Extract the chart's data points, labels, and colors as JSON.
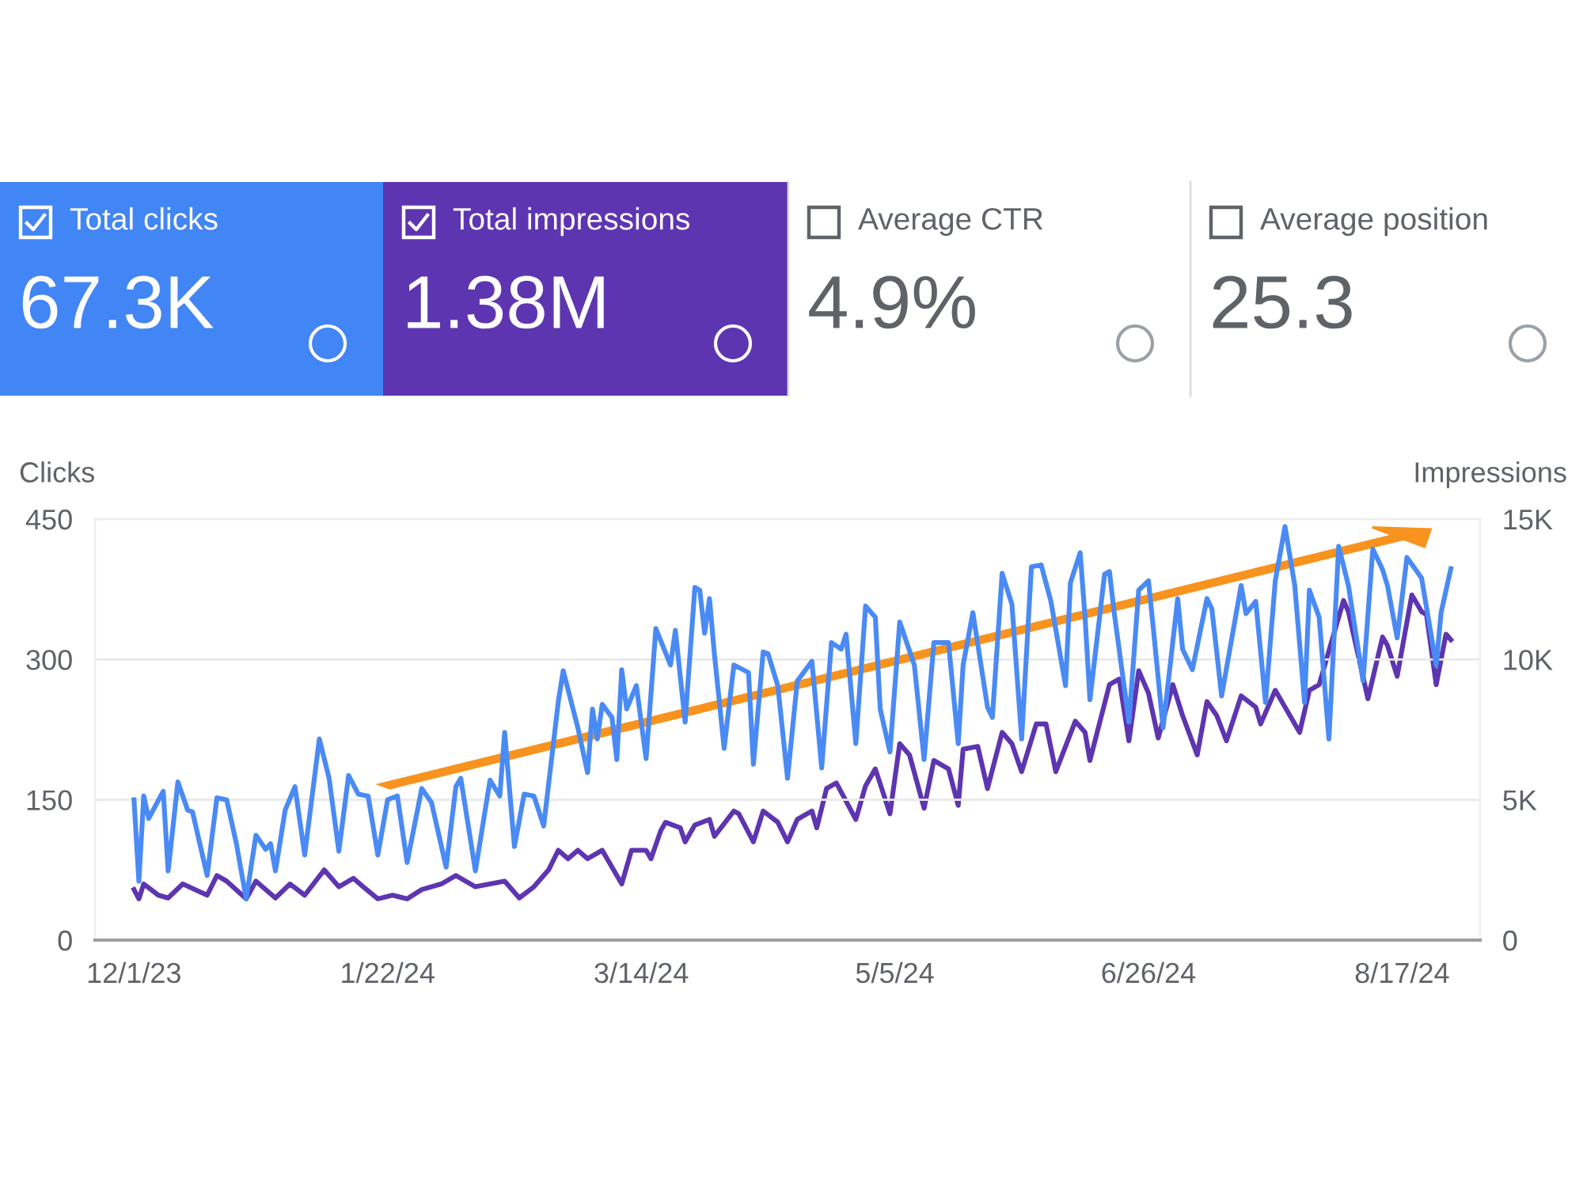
{
  "chart_data": {
    "type": "line",
    "annotations": [
      "Total clicks",
      "67.3K",
      "Total impressions",
      "1.38M",
      "Average CTR",
      "4.9%",
      "Average position",
      "25.3"
    ],
    "ylabel": "Clicks",
    "y2label": "Impressions",
    "xlim": [
      "2023-11-23",
      "2024-09-02"
    ],
    "xticks": [
      {
        "value": "2023-12-01",
        "label": "12/1/23"
      },
      {
        "value": "2024-01-22",
        "label": "1/22/24"
      },
      {
        "value": "2024-03-14",
        "label": "3/14/24"
      },
      {
        "value": "2024-05-05",
        "label": "5/5/24"
      },
      {
        "value": "2024-06-26",
        "label": "6/26/24"
      },
      {
        "value": "2024-08-17",
        "label": "8/17/24"
      }
    ],
    "ylim": [
      0,
      450
    ],
    "yticks": [
      0,
      150,
      300,
      450
    ],
    "y2lim": [
      0,
      15000
    ],
    "y2ticks": [
      0,
      {
        "value": 5000,
        "label": "5K"
      },
      {
        "value": 10000,
        "label": "10K"
      },
      {
        "value": 15000,
        "label": "15K"
      }
    ],
    "grid": "y",
    "marker": "none",
    "line_style": "solid",
    "series": [
      {
        "color": "#4a8af4",
        "x": [
          "2023-12-01",
          "2023-12-02",
          "2023-12-03",
          "2023-12-04",
          "2023-12-07",
          "2023-12-08",
          "2023-12-10",
          "2023-12-12",
          "2023-12-13",
          "2023-12-16",
          "2023-12-18",
          "2023-12-20",
          "2023-12-22",
          "2023-12-24",
          "2023-12-26",
          "2023-12-28",
          "2023-12-29",
          "2023-12-30",
          "2024-01-01",
          "2024-01-03",
          "2024-01-05",
          "2024-01-08",
          "2024-01-10",
          "2024-01-12",
          "2024-01-14",
          "2024-01-16",
          "2024-01-18",
          "2024-01-20",
          "2024-01-22",
          "2024-01-24",
          "2024-01-26",
          "2024-01-29",
          "2024-01-31",
          "2024-02-03",
          "2024-02-05",
          "2024-02-06",
          "2024-02-09",
          "2024-02-12",
          "2024-02-14",
          "2024-02-15",
          "2024-02-17",
          "2024-02-19",
          "2024-02-21",
          "2024-02-23",
          "2024-02-26",
          "2024-02-27",
          "2024-03-01",
          "2024-03-03",
          "2024-03-04",
          "2024-03-05",
          "2024-03-06",
          "2024-03-08",
          "2024-03-09",
          "2024-03-10",
          "2024-03-11",
          "2024-03-13",
          "2024-03-15",
          "2024-03-17",
          "2024-03-20",
          "2024-03-21",
          "2024-03-23",
          "2024-03-25",
          "2024-03-26",
          "2024-03-27",
          "2024-03-28",
          "2024-03-29",
          "2024-03-31",
          "2024-04-02",
          "2024-04-05",
          "2024-04-06",
          "2024-04-08",
          "2024-04-09",
          "2024-04-11",
          "2024-04-13",
          "2024-04-15",
          "2024-04-18",
          "2024-04-20",
          "2024-04-22",
          "2024-04-24",
          "2024-04-25",
          "2024-04-27",
          "2024-04-29",
          "2024-05-01",
          "2024-05-02",
          "2024-05-04",
          "2024-05-06",
          "2024-05-09",
          "2024-05-11",
          "2024-05-13",
          "2024-05-16",
          "2024-05-18",
          "2024-05-19",
          "2024-05-21",
          "2024-05-24",
          "2024-05-25",
          "2024-05-27",
          "2024-05-29",
          "2024-05-31",
          "2024-06-02",
          "2024-06-04",
          "2024-06-06",
          "2024-06-09",
          "2024-06-10",
          "2024-06-12",
          "2024-06-13",
          "2024-06-14",
          "2024-06-17",
          "2024-06-18",
          "2024-06-19",
          "2024-06-22",
          "2024-06-24",
          "2024-06-26",
          "2024-06-27",
          "2024-06-29",
          "2024-07-02",
          "2024-07-03",
          "2024-07-05",
          "2024-07-08",
          "2024-07-09",
          "2024-07-11",
          "2024-07-15",
          "2024-07-16",
          "2024-07-18",
          "2024-07-20",
          "2024-07-22",
          "2024-07-24",
          "2024-07-26",
          "2024-07-28",
          "2024-07-29",
          "2024-07-31",
          "2024-08-02",
          "2024-08-04",
          "2024-08-06",
          "2024-08-09",
          "2024-08-11",
          "2024-08-13",
          "2024-08-14",
          "2024-08-16",
          "2024-08-18",
          "2024-08-21",
          "2024-08-24",
          "2024-08-25",
          "2024-08-27"
        ],
        "values": [
          150,
          63,
          154,
          130,
          159,
          74,
          169,
          139,
          137,
          69,
          152,
          150,
          103,
          44,
          112,
          97,
          103,
          74,
          139,
          164,
          91,
          215,
          173,
          95,
          176,
          156,
          154,
          91,
          150,
          154,
          83,
          162,
          147,
          78,
          164,
          173,
          74,
          171,
          154,
          222,
          100,
          156,
          154,
          122,
          255,
          288,
          227,
          179,
          247,
          215,
          252,
          238,
          193,
          289,
          247,
          272,
          194,
          333,
          294,
          331,
          233,
          377,
          374,
          328,
          365,
          306,
          205,
          294,
          286,
          188,
          308,
          306,
          272,
          173,
          277,
          298,
          184,
          318,
          311,
          327,
          210,
          357,
          345,
          247,
          201,
          340,
          294,
          193,
          318,
          318,
          210,
          294,
          350,
          249,
          238,
          392,
          359,
          215,
          399,
          401,
          362,
          272,
          382,
          414,
          345,
          257,
          391,
          394,
          349,
          233,
          374,
          384,
          333,
          227,
          365,
          311,
          289,
          365,
          354,
          261,
          379,
          349,
          362,
          254,
          384,
          442,
          379,
          254,
          374,
          345,
          215,
          421,
          379,
          277,
          418,
          396,
          379,
          323,
          409,
          387,
          294,
          350,
          397
        ]
      },
      {
        "color": "#5e35b1",
        "axis": "y2",
        "x": [
          "2023-12-01",
          "2023-12-02",
          "2023-12-03",
          "2023-12-06",
          "2023-12-08",
          "2023-12-11",
          "2023-12-16",
          "2023-12-18",
          "2023-12-20",
          "2023-12-24",
          "2023-12-26",
          "2023-12-30",
          "2024-01-02",
          "2024-01-05",
          "2024-01-09",
          "2024-01-12",
          "2024-01-15",
          "2024-01-17",
          "2024-01-20",
          "2024-01-23",
          "2024-01-26",
          "2024-01-29",
          "2024-02-02",
          "2024-02-05",
          "2024-02-09",
          "2024-02-15",
          "2024-02-18",
          "2024-02-21",
          "2024-02-24",
          "2024-02-26",
          "2024-02-28",
          "2024-03-01",
          "2024-03-03",
          "2024-03-06",
          "2024-03-10",
          "2024-03-12",
          "2024-03-15",
          "2024-03-16",
          "2024-03-18",
          "2024-03-19",
          "2024-03-22",
          "2024-03-23",
          "2024-03-25",
          "2024-03-28",
          "2024-03-29",
          "2024-04-02",
          "2024-04-03",
          "2024-04-06",
          "2024-04-08",
          "2024-04-11",
          "2024-04-13",
          "2024-04-15",
          "2024-04-18",
          "2024-04-19",
          "2024-04-21",
          "2024-04-23",
          "2024-04-27",
          "2024-04-29",
          "2024-05-01",
          "2024-05-04",
          "2024-05-06",
          "2024-05-08",
          "2024-05-11",
          "2024-05-13",
          "2024-05-16",
          "2024-05-18",
          "2024-05-19",
          "2024-05-22",
          "2024-05-24",
          "2024-05-27",
          "2024-05-29",
          "2024-05-31",
          "2024-06-03",
          "2024-06-05",
          "2024-06-07",
          "2024-06-11",
          "2024-06-13",
          "2024-06-14",
          "2024-06-18",
          "2024-06-20",
          "2024-06-22",
          "2024-06-24",
          "2024-06-26",
          "2024-06-28",
          "2024-07-01",
          "2024-07-03",
          "2024-07-06",
          "2024-07-08",
          "2024-07-10",
          "2024-07-12",
          "2024-07-15",
          "2024-07-18",
          "2024-07-19",
          "2024-07-22",
          "2024-07-27",
          "2024-07-29",
          "2024-07-31",
          "2024-08-01",
          "2024-08-05",
          "2024-08-06",
          "2024-08-10",
          "2024-08-13",
          "2024-08-14",
          "2024-08-16",
          "2024-08-19",
          "2024-08-21",
          "2024-08-22",
          "2024-08-24",
          "2024-08-26",
          "2024-08-27"
        ],
        "values": [
          1800,
          1470,
          2000,
          1600,
          1500,
          2000,
          1600,
          2300,
          2100,
          1470,
          2100,
          1500,
          2000,
          1600,
          2500,
          1900,
          2200,
          1900,
          1470,
          1600,
          1470,
          1800,
          2000,
          2300,
          1900,
          2100,
          1500,
          1900,
          2500,
          3200,
          2900,
          3200,
          2900,
          3200,
          2000,
          3200,
          3200,
          2900,
          3900,
          4200,
          4000,
          3500,
          4100,
          4300,
          3700,
          4600,
          4500,
          3500,
          4600,
          4200,
          3500,
          4300,
          4600,
          4000,
          5400,
          5600,
          4300,
          5500,
          6100,
          4500,
          7000,
          6600,
          4700,
          6400,
          6100,
          4800,
          6800,
          6900,
          5400,
          7400,
          7000,
          6000,
          7700,
          7700,
          6000,
          7800,
          7400,
          6400,
          9100,
          9300,
          7100,
          9600,
          8800,
          7200,
          9100,
          8000,
          6600,
          8500,
          8000,
          7100,
          8700,
          8300,
          7700,
          8900,
          7400,
          8900,
          9100,
          9700,
          12100,
          11700,
          8600,
          10800,
          10500,
          9400,
          12300,
          11700,
          11600,
          9100,
          10900,
          10700
        ]
      }
    ]
  }
}
